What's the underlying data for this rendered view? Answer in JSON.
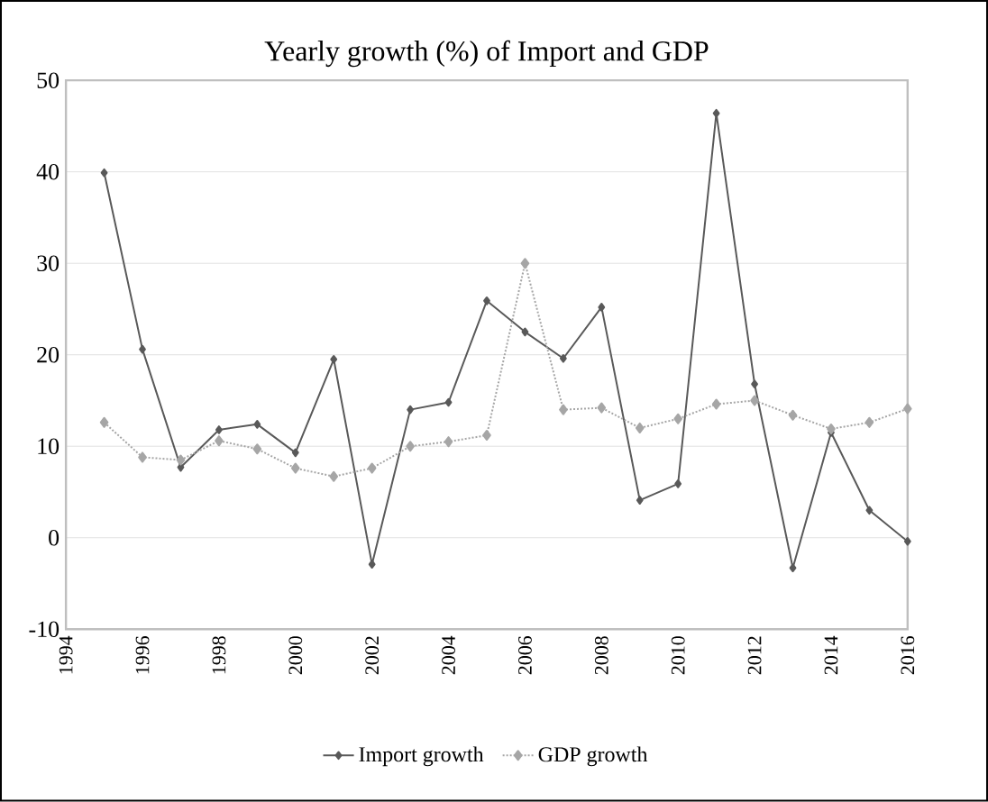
{
  "chart_data": {
    "type": "line",
    "title": "Yearly growth (%) of Import and GDP",
    "x": [
      1995,
      1996,
      1997,
      1998,
      1999,
      2000,
      2001,
      2002,
      2003,
      2004,
      2005,
      2006,
      2007,
      2008,
      2009,
      2010,
      2011,
      2012,
      2013,
      2014,
      2015,
      2016
    ],
    "series": [
      {
        "name": "Import growth",
        "color": "#595959",
        "marker": "diamond",
        "line_style": "solid",
        "values": [
          39.9,
          20.6,
          7.7,
          11.8,
          12.4,
          9.3,
          19.5,
          -2.9,
          14.0,
          14.8,
          25.9,
          22.5,
          19.6,
          25.2,
          4.1,
          5.9,
          46.4,
          16.8,
          -3.3,
          11.5,
          3.0,
          -0.4
        ]
      },
      {
        "name": "GDP growth",
        "color": "#a6a6a6",
        "marker": "diamond",
        "line_style": "dotted",
        "values": [
          12.6,
          8.8,
          8.5,
          10.6,
          9.7,
          7.6,
          6.7,
          7.6,
          10.0,
          10.5,
          11.2,
          30.0,
          14.0,
          14.2,
          12.0,
          13.0,
          14.6,
          15.0,
          13.4,
          11.9,
          12.6,
          14.1
        ]
      }
    ],
    "xlim": [
      1994,
      2016
    ],
    "xticks": [
      1994,
      1996,
      1998,
      2000,
      2002,
      2004,
      2006,
      2008,
      2010,
      2012,
      2014,
      2016
    ],
    "ylim": [
      -10,
      50
    ],
    "yticks": [
      -10,
      0,
      10,
      20,
      30,
      40,
      50
    ],
    "grid": "y",
    "legend": "bottom"
  }
}
